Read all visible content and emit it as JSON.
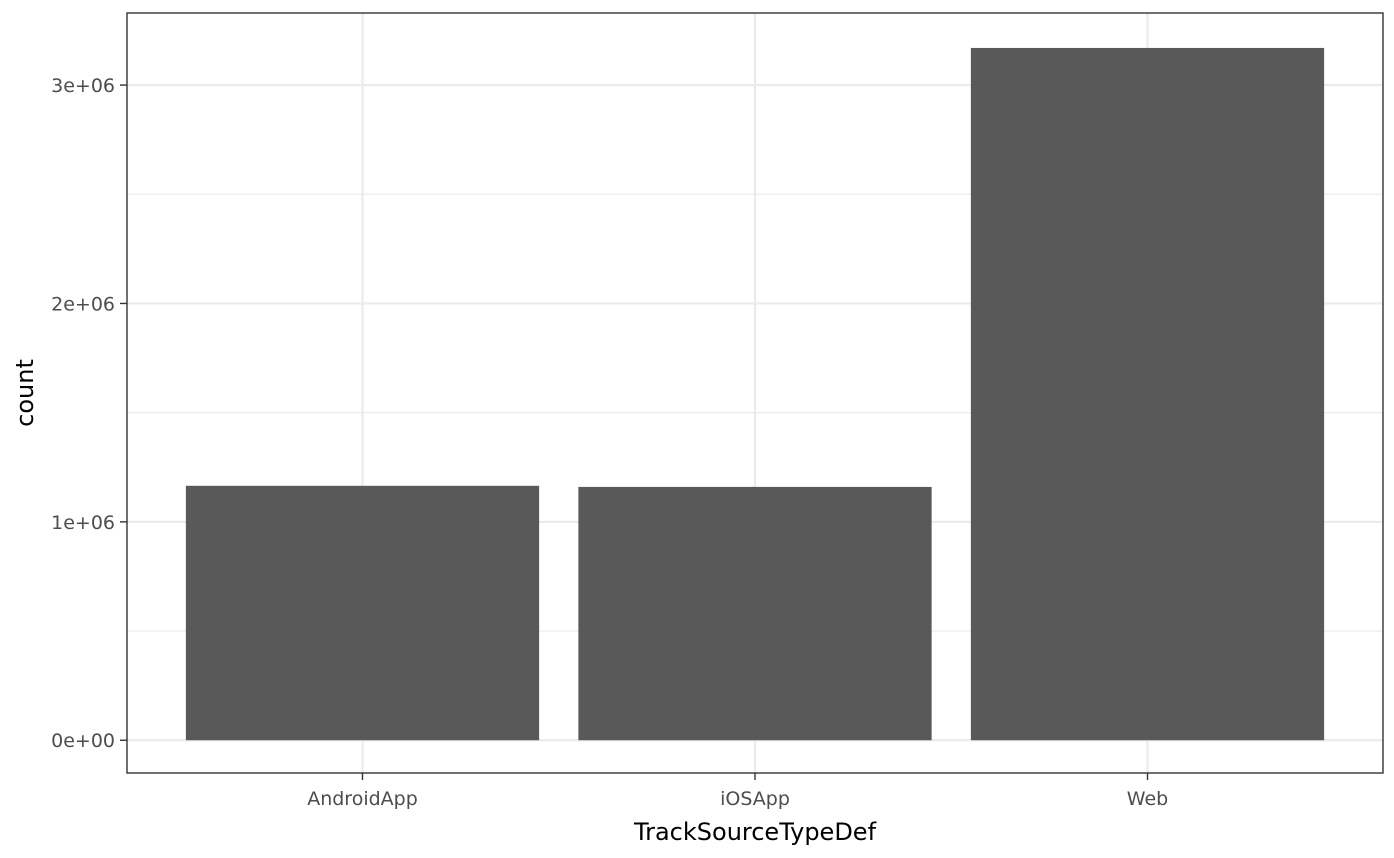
{
  "chart_data": {
    "type": "bar",
    "title": "",
    "xlabel": "TrackSourceTypeDef",
    "ylabel": "count",
    "categories": [
      "AndroidApp",
      "iOSApp",
      "Web"
    ],
    "values": [
      1165000,
      1160000,
      3170000
    ],
    "ylim": [
      -150000,
      3330000
    ],
    "yticks": [
      {
        "value": 0,
        "label": "0e+00"
      },
      {
        "value": 1000000,
        "label": "1e+06"
      },
      {
        "value": 2000000,
        "label": "2e+06"
      },
      {
        "value": 3000000,
        "label": "3e+06"
      }
    ],
    "yminor": [
      500000,
      1500000,
      2500000
    ],
    "grid": true,
    "legend": "none",
    "bar_color": "#595959",
    "grid_color": "#ebebeb",
    "panel_border_color": "#333333"
  }
}
